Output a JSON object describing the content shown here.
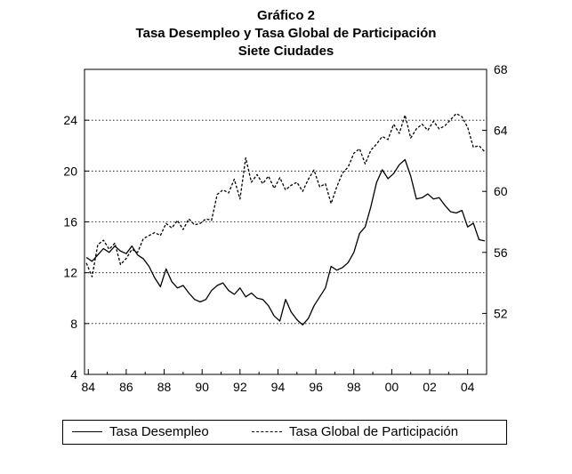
{
  "chart_data": {
    "type": "line",
    "title": "Gráfico 2",
    "subtitle_lines": [
      "Tasa Desempleo y Tasa Global de Participación",
      "Siete Ciudades"
    ],
    "x_tick_labels": [
      "84",
      "86",
      "88",
      "90",
      "92",
      "94",
      "96",
      "98",
      "00",
      "02",
      "04"
    ],
    "xlim": [
      1983.8,
      2005.0
    ],
    "left_axis": {
      "ylim": [
        4,
        28
      ],
      "ticks": [
        4,
        8,
        12,
        16,
        20,
        24
      ]
    },
    "right_axis": {
      "ylim": [
        48,
        68
      ],
      "ticks": [
        52,
        56,
        60,
        64,
        68
      ]
    },
    "grid": "horizontal dotted at left-axis ticks 8-24",
    "legend_position": "bottom",
    "series": [
      {
        "name": "Tasa Desempleo",
        "axis": "left",
        "line_style": "solid",
        "color": "#000000",
        "points": [
          [
            1983.9,
            13.2
          ],
          [
            1984.2,
            12.9
          ],
          [
            1984.5,
            13.4
          ],
          [
            1984.8,
            13.9
          ],
          [
            1985.1,
            13.6
          ],
          [
            1985.4,
            14.1
          ],
          [
            1985.7,
            13.7
          ],
          [
            1986.0,
            13.5
          ],
          [
            1986.3,
            14.1
          ],
          [
            1986.6,
            13.4
          ],
          [
            1986.9,
            13.1
          ],
          [
            1987.2,
            12.5
          ],
          [
            1987.5,
            11.6
          ],
          [
            1987.8,
            10.9
          ],
          [
            1988.1,
            12.3
          ],
          [
            1988.4,
            11.3
          ],
          [
            1988.7,
            10.8
          ],
          [
            1989.0,
            11.0
          ],
          [
            1989.3,
            10.4
          ],
          [
            1989.6,
            9.9
          ],
          [
            1989.9,
            9.7
          ],
          [
            1990.2,
            9.9
          ],
          [
            1990.5,
            10.6
          ],
          [
            1990.8,
            11.0
          ],
          [
            1991.1,
            11.2
          ],
          [
            1991.4,
            10.6
          ],
          [
            1991.7,
            10.3
          ],
          [
            1992.0,
            10.8
          ],
          [
            1992.3,
            10.1
          ],
          [
            1992.6,
            10.4
          ],
          [
            1992.9,
            10.0
          ],
          [
            1993.2,
            9.9
          ],
          [
            1993.5,
            9.4
          ],
          [
            1993.8,
            8.6
          ],
          [
            1994.1,
            8.2
          ],
          [
            1994.4,
            9.9
          ],
          [
            1994.7,
            8.9
          ],
          [
            1995.0,
            8.3
          ],
          [
            1995.3,
            7.9
          ],
          [
            1995.6,
            8.4
          ],
          [
            1995.9,
            9.4
          ],
          [
            1996.2,
            10.1
          ],
          [
            1996.5,
            10.8
          ],
          [
            1996.8,
            12.5
          ],
          [
            1997.1,
            12.2
          ],
          [
            1997.4,
            12.4
          ],
          [
            1997.7,
            12.8
          ],
          [
            1998.0,
            13.6
          ],
          [
            1998.3,
            15.1
          ],
          [
            1998.6,
            15.6
          ],
          [
            1998.9,
            17.2
          ],
          [
            1999.2,
            19.1
          ],
          [
            1999.5,
            20.1
          ],
          [
            1999.8,
            19.4
          ],
          [
            2000.1,
            19.8
          ],
          [
            2000.4,
            20.5
          ],
          [
            2000.7,
            20.9
          ],
          [
            2001.0,
            19.6
          ],
          [
            2001.3,
            17.8
          ],
          [
            2001.6,
            17.9
          ],
          [
            2001.9,
            18.2
          ],
          [
            2002.2,
            17.8
          ],
          [
            2002.5,
            17.9
          ],
          [
            2002.8,
            17.3
          ],
          [
            2003.1,
            16.8
          ],
          [
            2003.4,
            16.7
          ],
          [
            2003.7,
            16.9
          ],
          [
            2004.0,
            15.6
          ],
          [
            2004.3,
            15.9
          ],
          [
            2004.6,
            14.6
          ],
          [
            2004.9,
            14.5
          ]
        ]
      },
      {
        "name": "Tasa Global de Participación",
        "axis": "right",
        "line_style": "dashed",
        "color": "#000000",
        "points": [
          [
            1983.9,
            55.3
          ],
          [
            1984.2,
            54.4
          ],
          [
            1984.5,
            56.5
          ],
          [
            1984.8,
            56.8
          ],
          [
            1985.1,
            56.2
          ],
          [
            1985.4,
            56.6
          ],
          [
            1985.7,
            55.2
          ],
          [
            1986.0,
            55.6
          ],
          [
            1986.3,
            56.2
          ],
          [
            1986.6,
            56.0
          ],
          [
            1986.9,
            56.9
          ],
          [
            1987.2,
            57.1
          ],
          [
            1987.5,
            57.3
          ],
          [
            1987.8,
            57.1
          ],
          [
            1988.1,
            57.9
          ],
          [
            1988.4,
            57.6
          ],
          [
            1988.7,
            58.1
          ],
          [
            1989.0,
            57.5
          ],
          [
            1989.3,
            58.2
          ],
          [
            1989.6,
            57.8
          ],
          [
            1989.9,
            57.9
          ],
          [
            1990.2,
            58.2
          ],
          [
            1990.5,
            58.1
          ],
          [
            1990.8,
            59.8
          ],
          [
            1991.1,
            60.1
          ],
          [
            1991.4,
            59.9
          ],
          [
            1991.7,
            60.8
          ],
          [
            1992.0,
            59.5
          ],
          [
            1992.3,
            62.2
          ],
          [
            1992.6,
            60.6
          ],
          [
            1992.9,
            61.1
          ],
          [
            1993.2,
            60.5
          ],
          [
            1993.5,
            61.0
          ],
          [
            1993.8,
            60.2
          ],
          [
            1994.1,
            60.9
          ],
          [
            1994.4,
            60.1
          ],
          [
            1994.7,
            60.4
          ],
          [
            1995.0,
            60.6
          ],
          [
            1995.3,
            60.0
          ],
          [
            1995.6,
            60.8
          ],
          [
            1995.9,
            61.4
          ],
          [
            1996.2,
            60.3
          ],
          [
            1996.5,
            60.5
          ],
          [
            1996.8,
            59.2
          ],
          [
            1997.1,
            60.3
          ],
          [
            1997.4,
            61.2
          ],
          [
            1997.7,
            61.6
          ],
          [
            1998.0,
            62.5
          ],
          [
            1998.3,
            62.8
          ],
          [
            1998.6,
            61.8
          ],
          [
            1998.9,
            62.7
          ],
          [
            1999.2,
            63.1
          ],
          [
            1999.5,
            63.6
          ],
          [
            1999.8,
            63.4
          ],
          [
            2000.1,
            64.4
          ],
          [
            2000.4,
            63.8
          ],
          [
            2000.7,
            65.0
          ],
          [
            2001.0,
            63.5
          ],
          [
            2001.3,
            64.1
          ],
          [
            2001.6,
            64.4
          ],
          [
            2001.9,
            64.0
          ],
          [
            2002.2,
            64.6
          ],
          [
            2002.5,
            64.1
          ],
          [
            2002.8,
            64.3
          ],
          [
            2003.1,
            64.7
          ],
          [
            2003.4,
            65.1
          ],
          [
            2003.7,
            64.9
          ],
          [
            2004.0,
            64.2
          ],
          [
            2004.3,
            62.9
          ],
          [
            2004.6,
            63.0
          ],
          [
            2004.9,
            62.6
          ]
        ]
      }
    ]
  },
  "legend": {
    "item1": "Tasa Desempleo",
    "item2": "Tasa Global de Participación"
  }
}
